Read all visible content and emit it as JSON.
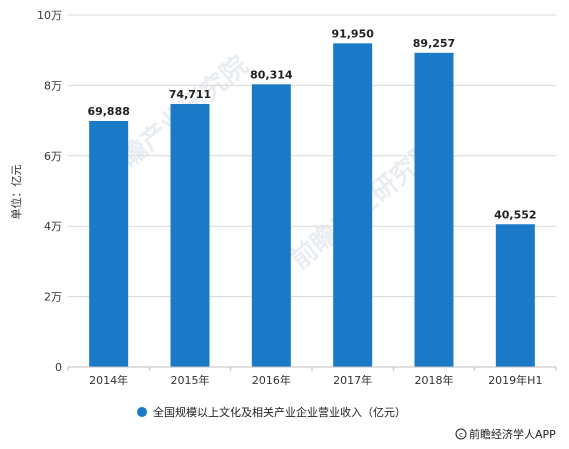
{
  "chart_data": {
    "type": "bar",
    "categories": [
      "2014年",
      "2015年",
      "2016年",
      "2017年",
      "2018年",
      "2019年H1"
    ],
    "values": [
      69888,
      74711,
      80314,
      91950,
      89257,
      40552
    ],
    "data_labels": [
      "69,888",
      "74,711",
      "80,314",
      "91,950",
      "89,257",
      "40,552"
    ],
    "ylim": [
      0,
      100000
    ],
    "yticks": [
      0,
      20000,
      40000,
      60000,
      80000,
      100000
    ],
    "ytick_labels": [
      "0",
      "2万",
      "4万",
      "6万",
      "8万",
      "10万"
    ],
    "ylabel": "单位：亿元",
    "grid": true,
    "legend_position": "bottom",
    "series": [
      {
        "name": "全国规模以上文化及相关产业企业营业收入（亿元）",
        "color": "#1a7ac8"
      }
    ]
  },
  "credit": {
    "icon": "copyright-icon",
    "text": "前瞻经济学人APP"
  },
  "watermark": {
    "text": "前瞻产业研究院"
  },
  "colors": {
    "bar": "#1a7ac8",
    "grid": "#d9d9d9",
    "axis": "#bfbfbf"
  }
}
